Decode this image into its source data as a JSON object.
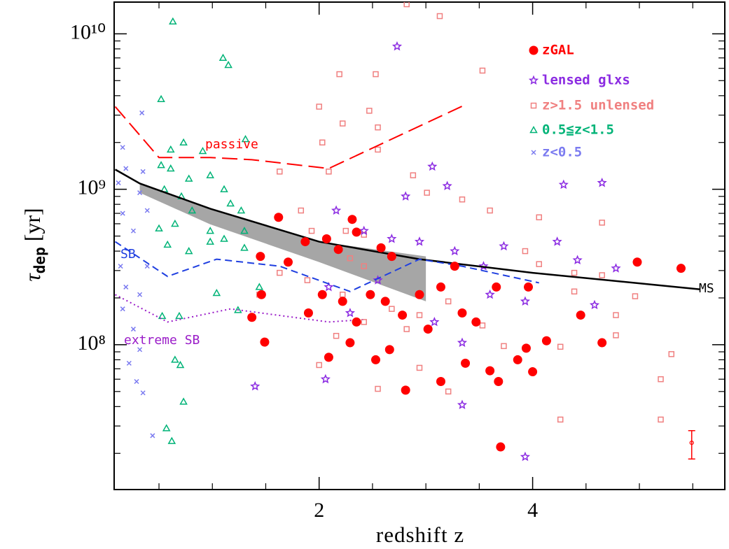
{
  "chart_data": {
    "type": "scatter",
    "xlabel": "redshift z",
    "ylabel": {
      "symbol": "τ",
      "subscript": "dep",
      "unit": "[yr]"
    },
    "xlim": [
      0.08,
      5.8
    ],
    "ylim": [
      11700000,
      16000000000
    ],
    "yscale": "log",
    "xticks": [
      2,
      4
    ],
    "xminor": [
      0.5,
      1,
      1.5,
      2.5,
      3,
      3.5,
      4.5,
      5,
      5.5
    ],
    "yticks": [
      {
        "value": 100000000,
        "label": "10⁸"
      },
      {
        "value": 1000000000,
        "label": "10⁹"
      },
      {
        "value": 10000000000,
        "label": "10¹⁰"
      }
    ],
    "yminor": [
      20000000,
      30000000,
      40000000,
      50000000,
      60000000,
      70000000,
      80000000,
      90000000,
      200000000,
      300000000,
      400000000,
      500000000,
      600000000,
      700000000,
      800000000,
      900000000,
      2000000000,
      3000000000,
      4000000000,
      5000000000,
      6000000000,
      7000000000,
      8000000000,
      9000000000
    ],
    "legend": "upper right",
    "series": [
      {
        "name": "z<0.5",
        "color": "#7b7bf0",
        "marker": "x",
        "x": [
          0.34,
          0.16,
          0.19,
          0.35,
          0.12,
          0.32,
          0.39,
          0.16,
          0.26,
          0.14,
          0.19,
          0.32,
          0.16,
          0.26,
          0.32,
          0.22,
          0.35,
          0.44,
          0.29,
          0.39
        ],
        "values": [
          3100000000,
          1860000000,
          1360000000,
          1300000000,
          1100000000,
          950000000,
          730000000,
          700000000,
          540000000,
          320000000,
          235000000,
          210000000,
          170000000,
          126000000,
          93000000,
          76000000,
          49000000,
          26000000,
          58000000,
          320000000
        ]
      },
      {
        "name": "0.5≦z<1.5",
        "color": "#00b377",
        "marker": "triangle",
        "x": [
          0.63,
          1.1,
          1.15,
          0.52,
          1.31,
          0.61,
          0.73,
          0.91,
          0.52,
          0.61,
          0.78,
          0.55,
          0.71,
          0.98,
          1.11,
          1.17,
          1.27,
          0.5,
          0.65,
          0.81,
          0.98,
          1.11,
          1.3,
          0.58,
          0.78,
          0.98,
          1.3,
          1.04,
          1.24,
          0.53,
          0.69,
          0.65,
          0.7,
          0.73,
          0.57,
          0.62,
          1.44
        ],
        "values": [
          12000000000,
          7000000000,
          6300000000,
          3800000000,
          2100000000,
          1800000000,
          2000000000,
          1760000000,
          1430000000,
          1360000000,
          1170000000,
          1000000000,
          900000000,
          1230000000,
          1000000000,
          810000000,
          730000000,
          560000000,
          600000000,
          730000000,
          540000000,
          480000000,
          540000000,
          440000000,
          400000000,
          460000000,
          420000000,
          215000000,
          167000000,
          153000000,
          153000000,
          80000000,
          74000000,
          43000000,
          29000000,
          24000000,
          235000000
        ]
      },
      {
        "name": "z>1.5 unlensed",
        "color": "#f08080",
        "marker": "square",
        "x": [
          2.82,
          3.13,
          2.19,
          2.53,
          3.53,
          2.0,
          2.47,
          2.22,
          2.55,
          2.03,
          2.55,
          1.63,
          2.09,
          2.88,
          3.01,
          3.34,
          3.6,
          4.06,
          4.65,
          3.93,
          4.06,
          4.39,
          4.65,
          4.39,
          1.83,
          1.93,
          2.29,
          2.42,
          1.63,
          1.89,
          2.22,
          1.44,
          2.42,
          2.68,
          2.94,
          3.21,
          3.53,
          3.73,
          4.26,
          4.78,
          4.78,
          4.96,
          5.3,
          5.2,
          5.2,
          4.26,
          2.0,
          2.55,
          3.21,
          2.94,
          2.16,
          2.82,
          2.42,
          2.25
        ],
        "values": [
          15500000000,
          13000000000,
          5500000000,
          5500000000,
          5800000000,
          3400000000,
          3200000000,
          2650000000,
          2500000000,
          2000000000,
          1800000000,
          1300000000,
          1300000000,
          1230000000,
          950000000,
          860000000,
          730000000,
          660000000,
          610000000,
          400000000,
          330000000,
          290000000,
          280000000,
          220000000,
          730000000,
          540000000,
          360000000,
          320000000,
          290000000,
          260000000,
          210000000,
          210000000,
          140000000,
          170000000,
          155000000,
          190000000,
          133000000,
          98000000,
          97000000,
          155000000,
          115000000,
          205000000,
          87000000,
          60000000,
          33000000,
          33000000,
          74000000,
          52000000,
          50000000,
          71000000,
          114000000,
          126000000,
          510000000,
          540000000
        ]
      },
      {
        "name": "lensed glxs",
        "color": "#8b2be2",
        "marker": "star",
        "x": [
          2.73,
          3.06,
          3.2,
          4.29,
          4.65,
          2.16,
          2.42,
          2.68,
          2.94,
          3.27,
          3.73,
          4.23,
          4.78,
          4.42,
          3.93,
          3.54,
          2.55,
          2.09,
          2.29,
          3.08,
          3.34,
          2.06,
          1.4,
          3.34,
          3.93,
          3.6,
          2.81,
          4.58
        ],
        "values": [
          8300000000,
          1400000000,
          1050000000,
          1070000000,
          1100000000,
          730000000,
          540000000,
          480000000,
          460000000,
          400000000,
          430000000,
          460000000,
          310000000,
          350000000,
          190000000,
          320000000,
          260000000,
          235000000,
          160000000,
          140000000,
          103000000,
          60000000,
          54000000,
          41000000,
          19000000,
          210000000,
          900000000,
          180000000
        ]
      },
      {
        "name": "zGAL",
        "color": "#ff0000",
        "marker": "circle",
        "x": [
          1.62,
          1.45,
          1.46,
          1.37,
          1.49,
          1.71,
          1.87,
          2.07,
          2.18,
          2.31,
          2.35,
          2.58,
          2.68,
          1.9,
          2.03,
          2.22,
          2.35,
          2.48,
          2.62,
          2.78,
          2.94,
          3.02,
          3.14,
          3.27,
          3.34,
          3.47,
          3.6,
          3.66,
          3.68,
          3.96,
          3.94,
          4.13,
          4.45,
          4.65,
          4.98,
          5.39,
          3.7,
          2.81,
          2.53,
          2.09,
          2.29,
          3.14,
          3.37,
          2.66,
          3.86,
          4.0
        ],
        "values": [
          660000000,
          370000000,
          210000000,
          150000000,
          104000000,
          340000000,
          460000000,
          480000000,
          410000000,
          640000000,
          530000000,
          420000000,
          370000000,
          160000000,
          210000000,
          190000000,
          140000000,
          210000000,
          190000000,
          155000000,
          210000000,
          126000000,
          235000000,
          320000000,
          160000000,
          140000000,
          68000000,
          235000000,
          58000000,
          235000000,
          95000000,
          106000000,
          155000000,
          103000000,
          340000000,
          310000000,
          22000000,
          51000000,
          80000000,
          83000000,
          103000000,
          58000000,
          76000000,
          93000000,
          80000000,
          67000000
        ]
      }
    ],
    "lines": [
      {
        "name": "MS",
        "color": "#000000",
        "dash": "none",
        "width": 2.5,
        "x": [
          0.09,
          0.32,
          0.98,
          2.0,
          2.94,
          4.0,
          5.57
        ],
        "values": [
          1340000000,
          1090000000,
          750000000,
          460000000,
          355000000,
          290000000,
          227000000
        ]
      },
      {
        "name": "passive",
        "color": "#ff0000",
        "dash": "22 9",
        "width": 2,
        "x": [
          0.09,
          0.5,
          0.98,
          1.37,
          2.09,
          3.37
        ],
        "values": [
          3400000000,
          1600000000,
          1600000000,
          1550000000,
          1360000000,
          3500000000
        ]
      },
      {
        "name": "SB",
        "color": "#1f3fe0",
        "dash": "10 6",
        "width": 2,
        "x": [
          0.09,
          0.58,
          1.04,
          1.63,
          2.29,
          2.94,
          3.34,
          4.06
        ],
        "values": [
          460000000,
          275000000,
          355000000,
          320000000,
          220000000,
          355000000,
          320000000,
          250000000
        ]
      },
      {
        "name": "extreme SB",
        "color": "#9a1cc8",
        "dash": "2 4",
        "width": 2,
        "x": [
          0.09,
          0.58,
          1.17,
          2.09,
          2.41
        ],
        "values": [
          210000000,
          140000000,
          170000000,
          140000000,
          145000000
        ]
      }
    ],
    "band": {
      "color": "#a6a6a6",
      "x": [
        0.32,
        0.98,
        2.0,
        3.0
      ],
      "upper": [
        1090000000,
        750000000,
        460000000,
        370000000
      ],
      "lower": [
        950000000,
        595000000,
        340000000,
        190000000
      ]
    },
    "errorbar": {
      "color": "#ff0000",
      "x": 5.49,
      "value": 23400000,
      "low": 18400000,
      "high": 28000000
    }
  }
}
